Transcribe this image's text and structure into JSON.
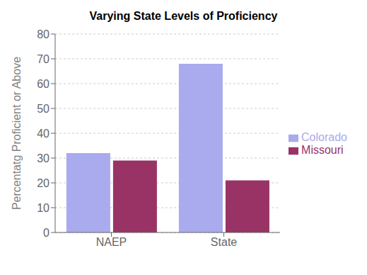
{
  "chart_data": {
    "type": "bar",
    "title": "Varying State Levels of Proficiency",
    "ylabel": "Percentatg Proficient or Above",
    "categories": [
      "NAEP",
      "State"
    ],
    "series": [
      {
        "name": "Colorado",
        "color": "#aaaaee",
        "values": [
          32,
          68
        ]
      },
      {
        "name": "Missouri",
        "color": "#993366",
        "values": [
          29,
          21
        ]
      }
    ],
    "ylim": [
      0,
      80
    ],
    "yticks": [
      0,
      10,
      20,
      30,
      40,
      50,
      60,
      70,
      80
    ],
    "grid": true,
    "legend": "right"
  }
}
